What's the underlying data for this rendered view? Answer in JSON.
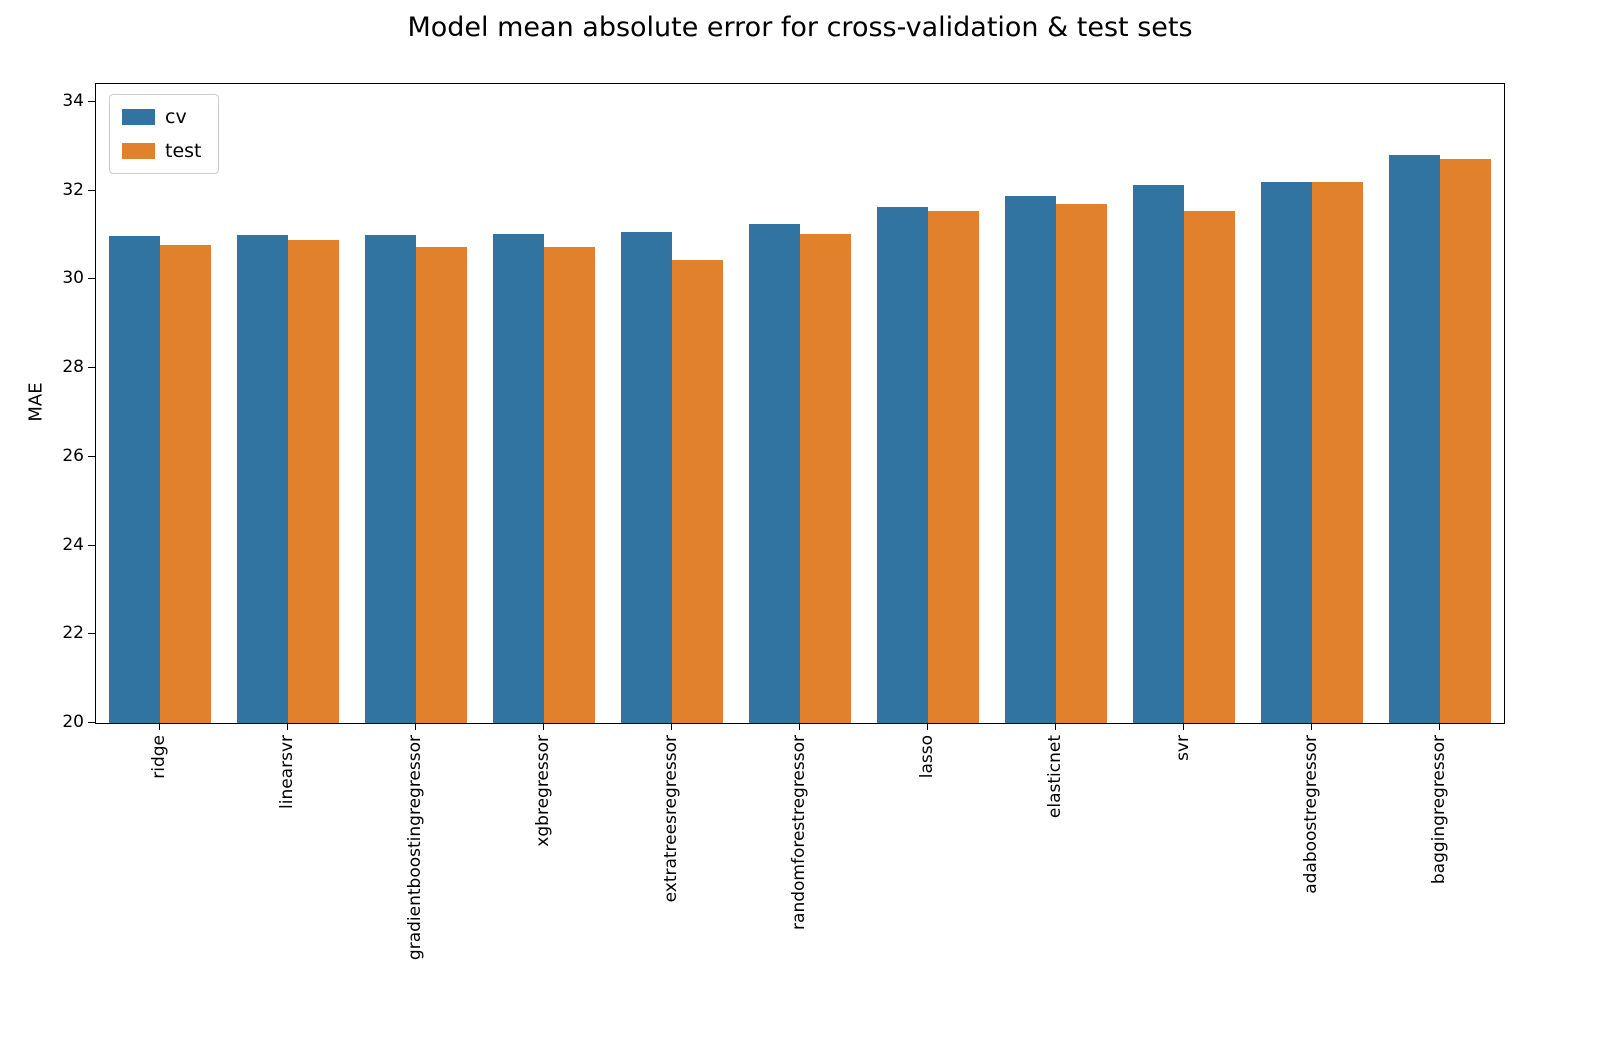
{
  "figure": {
    "background": "#ffffff"
  },
  "chart_data": {
    "type": "bar",
    "title": "Model mean absolute error for cross-validation & test sets",
    "xlabel": "",
    "ylabel": "MAE",
    "ylim": [
      20,
      34.4
    ],
    "yticks": [
      34,
      32,
      30,
      28,
      26,
      24,
      22,
      20
    ],
    "grid": false,
    "legend_position": "upper left",
    "categories": [
      "ridge",
      "linearsvr",
      "gradientboostingregressor",
      "xgbregressor",
      "extratreesregressor",
      "randomforestregressor",
      "lasso",
      "elasticnet",
      "svr",
      "adaboostregressor",
      "baggingregressor"
    ],
    "series": [
      {
        "name": "cv",
        "color": "#3274a1",
        "values": [
          30.97,
          31.0,
          31.0,
          31.03,
          31.07,
          31.25,
          31.63,
          31.87,
          32.12,
          32.2,
          32.8
        ]
      },
      {
        "name": "test",
        "color": "#e1812c",
        "values": [
          30.77,
          30.88,
          30.73,
          30.73,
          30.43,
          31.03,
          31.55,
          31.7,
          31.55,
          32.2,
          32.72
        ]
      }
    ]
  }
}
